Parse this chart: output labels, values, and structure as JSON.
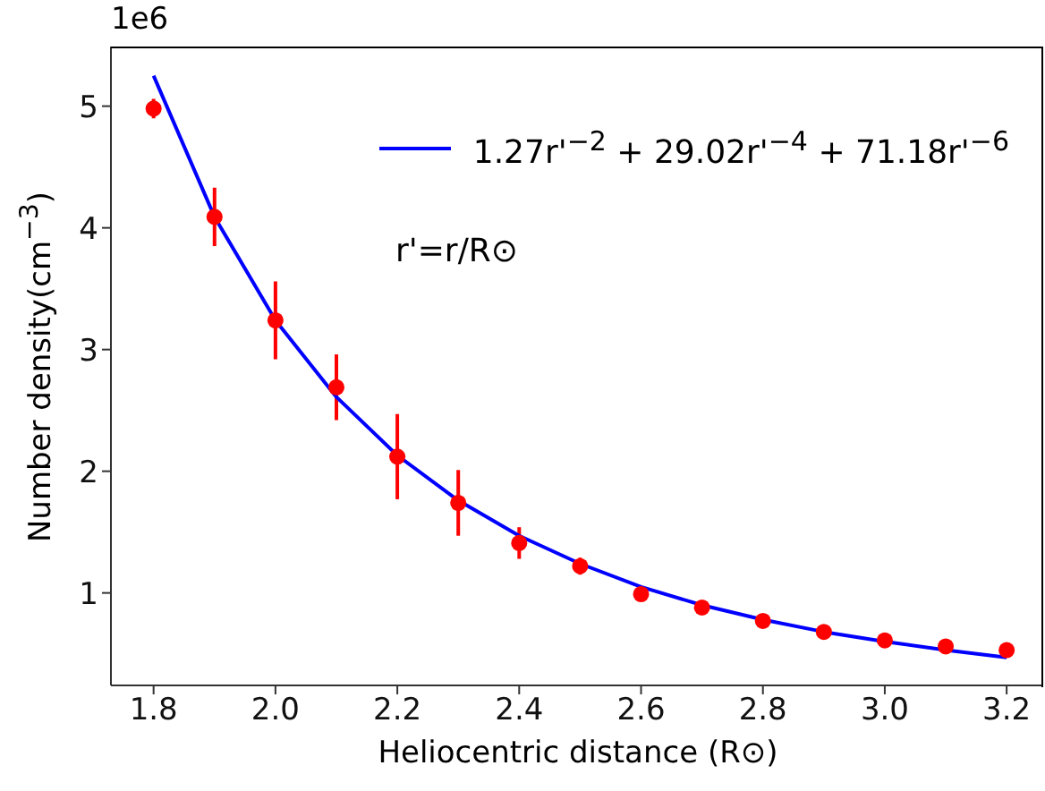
{
  "chart_data": {
    "type": "scatter",
    "xlabel": "Heliocentric distance (R⊙)",
    "ylabel": "Number density(cm$^{−3}$)",
    "annotations": [
      "1e6",
      "r'=r/R⊙"
    ],
    "x": [
      1.8,
      1.9,
      2.0,
      2.1,
      2.2,
      2.3,
      2.4,
      2.5,
      2.6,
      2.7,
      2.8,
      2.9,
      3.0,
      3.1,
      3.2
    ],
    "series": [
      {
        "color": "#ff0000",
        "marker": "circle",
        "values": [
          4.98,
          4.09,
          3.24,
          2.69,
          2.12,
          1.74,
          1.41,
          1.22,
          0.99,
          0.88,
          0.77,
          0.68,
          0.61,
          0.56,
          0.53
        ],
        "errors": [
          0.08,
          0.24,
          0.32,
          0.27,
          0.35,
          0.27,
          0.13,
          0.07,
          null,
          null,
          null,
          null,
          null,
          null,
          null
        ]
      },
      {
        "type": "line",
        "name": "1.27r'$^{−2}$ + 29.02r'$^{−4}$ + 71.18r'$^{−6}$",
        "color": "#0000ff",
        "marker": "none",
        "values": [
          5.25,
          4.09,
          3.24,
          2.61,
          2.13,
          1.76,
          1.47,
          1.24,
          1.05,
          0.9,
          0.78,
          0.68,
          0.6,
          0.53,
          0.47
        ]
      }
    ],
    "xlim": [
      1.73,
      3.26
    ],
    "ylim": [
      0.24,
      5.49
    ],
    "xticks": [
      {
        "value": 1.8,
        "label": "1.8"
      },
      {
        "value": 2.0,
        "label": "2.0"
      },
      {
        "value": 2.2,
        "label": "2.2"
      },
      {
        "value": 2.4,
        "label": "2.4"
      },
      {
        "value": 2.6,
        "label": "2.6"
      },
      {
        "value": 2.8,
        "label": "2.8"
      },
      {
        "value": 3.0,
        "label": "3.0"
      },
      {
        "value": 3.2,
        "label": "3.2"
      }
    ],
    "yticks": [
      1,
      2,
      3,
      4,
      5
    ],
    "grid": false,
    "legend": "top right"
  }
}
